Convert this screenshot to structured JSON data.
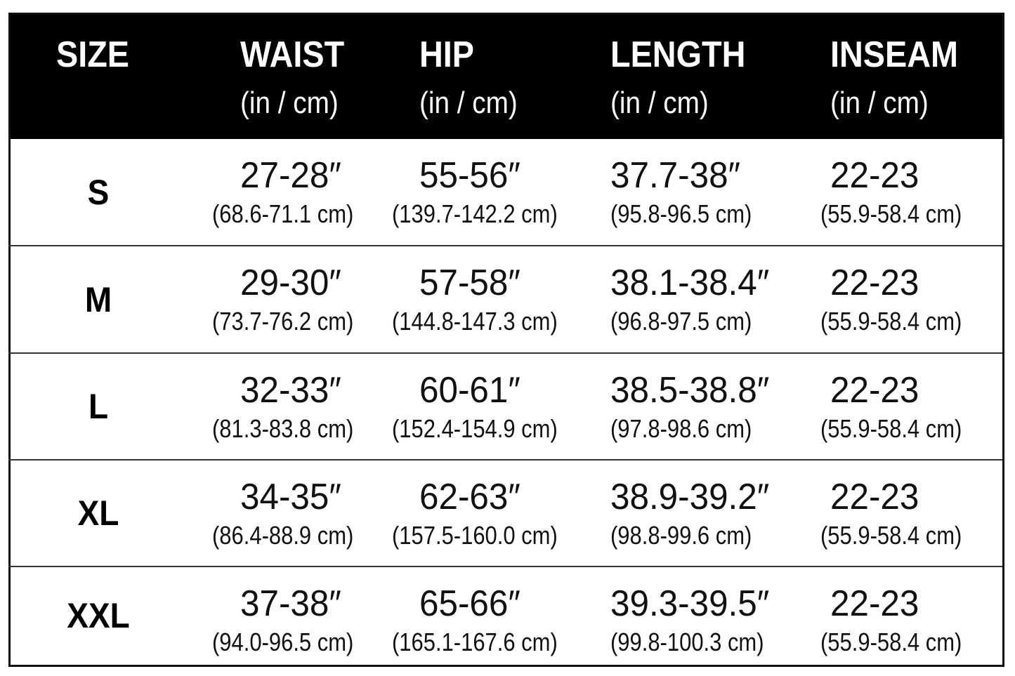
{
  "header": {
    "columns": [
      {
        "title": "SIZE"
      },
      {
        "title": "WAIST",
        "unit": "(in / cm)"
      },
      {
        "title": "HIP",
        "unit": "(in / cm)"
      },
      {
        "title": "LENGTH",
        "unit": "(in / cm)"
      },
      {
        "title": "INSEAM",
        "unit": "(in / cm)"
      }
    ]
  },
  "table": {
    "rows": [
      {
        "size": "S",
        "cells": [
          {
            "main": "27-28″",
            "sub": "(68.6-71.1 cm)"
          },
          {
            "main": "55-56″",
            "sub": "(139.7-142.2 cm)"
          },
          {
            "main": "37.7-38″",
            "sub": "(95.8-96.5 cm)"
          },
          {
            "main": "22-23",
            "sub": "(55.9-58.4 cm)"
          }
        ]
      },
      {
        "size": "M",
        "cells": [
          {
            "main": "29-30″",
            "sub": "(73.7-76.2 cm)"
          },
          {
            "main": "57-58″",
            "sub": "(144.8-147.3 cm)"
          },
          {
            "main": "38.1-38.4″",
            "sub": "(96.8-97.5 cm)"
          },
          {
            "main": "22-23",
            "sub": "(55.9-58.4 cm)"
          }
        ]
      },
      {
        "size": "L",
        "cells": [
          {
            "main": "32-33″",
            "sub": "(81.3-83.8 cm)"
          },
          {
            "main": "60-61″",
            "sub": "(152.4-154.9 cm)"
          },
          {
            "main": "38.5-38.8″",
            "sub": "(97.8-98.6 cm)"
          },
          {
            "main": "22-23",
            "sub": "(55.9-58.4 cm)"
          }
        ]
      },
      {
        "size": "XL",
        "cells": [
          {
            "main": "34-35″",
            "sub": "(86.4-88.9 cm)"
          },
          {
            "main": "62-63″",
            "sub": "(157.5-160.0 cm)"
          },
          {
            "main": "38.9-39.2″",
            "sub": "(98.8-99.6 cm)"
          },
          {
            "main": "22-23",
            "sub": "(55.9-58.4 cm)"
          }
        ]
      },
      {
        "size": "XXL",
        "cells": [
          {
            "main": "37-38″",
            "sub": "(94.0-96.5 cm)"
          },
          {
            "main": "65-66″",
            "sub": "(165.1-167.6 cm)"
          },
          {
            "main": "39.3-39.5″",
            "sub": "(99.8-100.3 cm)"
          },
          {
            "main": "22-23",
            "sub": "(55.9-58.4 cm)"
          }
        ]
      }
    ]
  }
}
